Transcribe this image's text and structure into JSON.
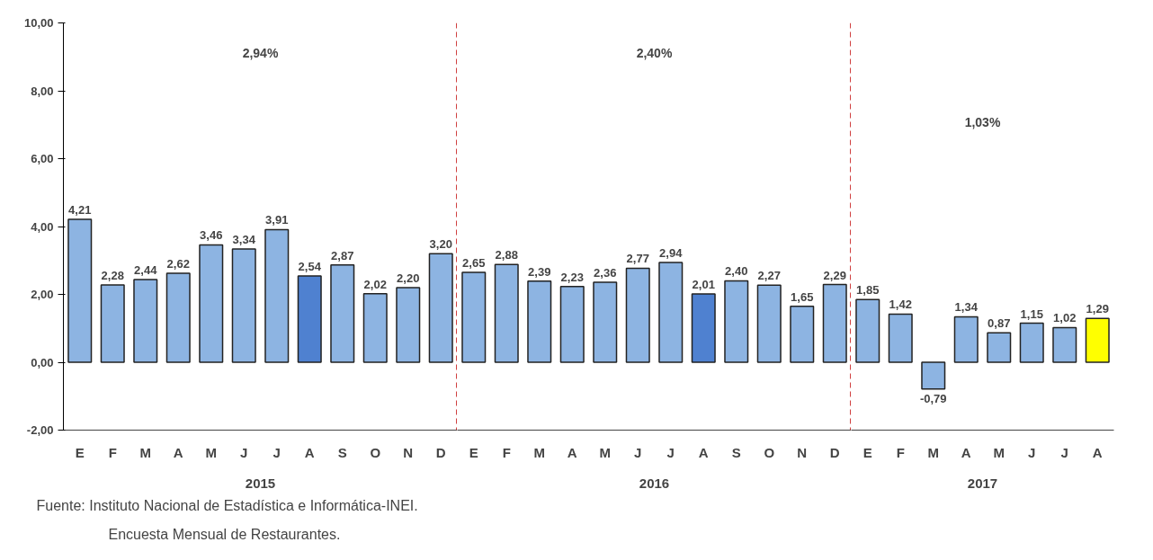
{
  "chart_data": [
    {
      "type": "bar",
      "xlabel": "2015",
      "annotations": [
        "2,94%"
      ],
      "categories": [
        "E",
        "F",
        "M",
        "A",
        "M",
        "J",
        "J",
        "A",
        "S",
        "O",
        "N",
        "D"
      ],
      "values": [
        4.21,
        2.28,
        2.44,
        2.62,
        3.46,
        3.34,
        3.91,
        2.54,
        2.87,
        2.02,
        2.2,
        3.2
      ],
      "value_labels": [
        "4,21",
        "2,28",
        "2,44",
        "2,62",
        "3,46",
        "3,34",
        "3,91",
        "2,54",
        "2,87",
        "2,02",
        "2,20",
        "3,20"
      ],
      "colors": [
        "#8db4e2",
        "#8db4e2",
        "#8db4e2",
        "#8db4e2",
        "#8db4e2",
        "#8db4e2",
        "#8db4e2",
        "#4f81d0",
        "#8db4e2",
        "#8db4e2",
        "#8db4e2",
        "#8db4e2"
      ],
      "ylim": [
        -2,
        10
      ],
      "yticks": [
        {
          "value": -2,
          "label": "-2,00"
        },
        {
          "value": 0,
          "label": "0,00"
        },
        {
          "value": 2,
          "label": "2,00"
        },
        {
          "value": 4,
          "label": "4,00"
        },
        {
          "value": 6,
          "label": "6,00"
        },
        {
          "value": 8,
          "label": "8,00"
        },
        {
          "value": 10,
          "label": "10,00"
        }
      ],
      "grid": false
    },
    {
      "type": "bar",
      "xlabel": "2016",
      "annotations": [
        "2,40%"
      ],
      "categories": [
        "E",
        "F",
        "M",
        "A",
        "M",
        "J",
        "J",
        "A",
        "S",
        "O",
        "N",
        "D"
      ],
      "values": [
        2.65,
        2.88,
        2.39,
        2.23,
        2.36,
        2.77,
        2.94,
        2.01,
        2.4,
        2.27,
        1.65,
        2.29
      ],
      "value_labels": [
        "2,65",
        "2,88",
        "2,39",
        "2,23",
        "2,36",
        "2,77",
        "2,94",
        "2,01",
        "2,40",
        "2,27",
        "1,65",
        "2,29"
      ],
      "colors": [
        "#8db4e2",
        "#8db4e2",
        "#8db4e2",
        "#8db4e2",
        "#8db4e2",
        "#8db4e2",
        "#8db4e2",
        "#4f81d0",
        "#8db4e2",
        "#8db4e2",
        "#8db4e2",
        "#8db4e2"
      ],
      "ylim": [
        -2,
        10
      ],
      "tick_labels": "x",
      "grid": false
    },
    {
      "type": "bar",
      "xlabel": "2017",
      "annotations": [
        "1,03%"
      ],
      "categories": [
        "E",
        "F",
        "M",
        "A",
        "M",
        "J",
        "J",
        "A"
      ],
      "values": [
        1.85,
        1.42,
        -0.79,
        1.34,
        0.87,
        1.15,
        1.02,
        1.29
      ],
      "value_labels": [
        "1,85",
        "1,42",
        "-0,79",
        "1,34",
        "0,87",
        "1,15",
        "1,02",
        "1,29"
      ],
      "colors": [
        "#8db4e2",
        "#8db4e2",
        "#8db4e2",
        "#8db4e2",
        "#8db4e2",
        "#8db4e2",
        "#8db4e2",
        "#ffff00"
      ],
      "ylim": [
        -2,
        10
      ],
      "tick_labels": "x",
      "grid": false
    },
    {
      "type": "other",
      "annotations": [
        "Fuente: Instituto Nacional de Estadística e Informática-INEI.",
        "Encuesta Mensual de  Restaurantes."
      ]
    }
  ]
}
